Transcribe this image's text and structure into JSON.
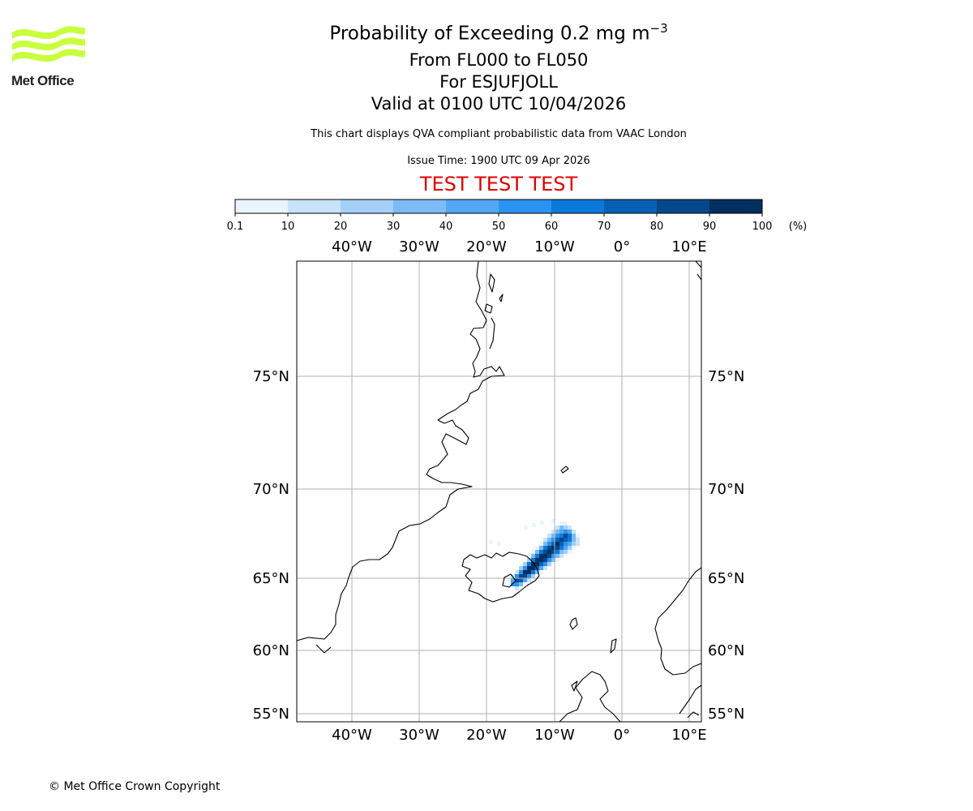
{
  "logo": {
    "text": "Met Office",
    "wave_color": "#c8ff3c",
    "text_color": "#222222"
  },
  "header": {
    "title_main": "Probability of Exceeding 0.2 mg m",
    "title_sup": "−3",
    "flight_levels": "From FL000 to FL050",
    "volcano": "For ESJUFJOLL",
    "valid_time": "Valid at 0100 UTC 10/04/2026",
    "description": "This chart displays QVA compliant probabilistic data from VAAC London",
    "issue_time": "Issue Time: 1900 UTC 09 Apr 2026",
    "test_banner": "TEST TEST TEST",
    "test_color": "#e00000"
  },
  "colorbar": {
    "ticks": [
      "0.1",
      "10",
      "20",
      "30",
      "40",
      "50",
      "60",
      "70",
      "80",
      "90",
      "100"
    ],
    "unit": "(%)",
    "colors": [
      "#eaf4fd",
      "#c8e3fb",
      "#a4d0f8",
      "#7cbbf5",
      "#52a6f2",
      "#2b92ef",
      "#0b79d9",
      "#0860b4",
      "#06488c",
      "#03305f"
    ]
  },
  "map": {
    "lon_labels": [
      "40°W",
      "30°W",
      "20°W",
      "10°W",
      "0°",
      "10°E"
    ],
    "lat_labels": [
      "75°N",
      "70°N",
      "65°N",
      "60°N",
      "55°N"
    ],
    "grid_color": "#b0b0b0",
    "coast_color": "#000000"
  },
  "footer": {
    "copyright": "© Met Office Crown Copyright"
  }
}
